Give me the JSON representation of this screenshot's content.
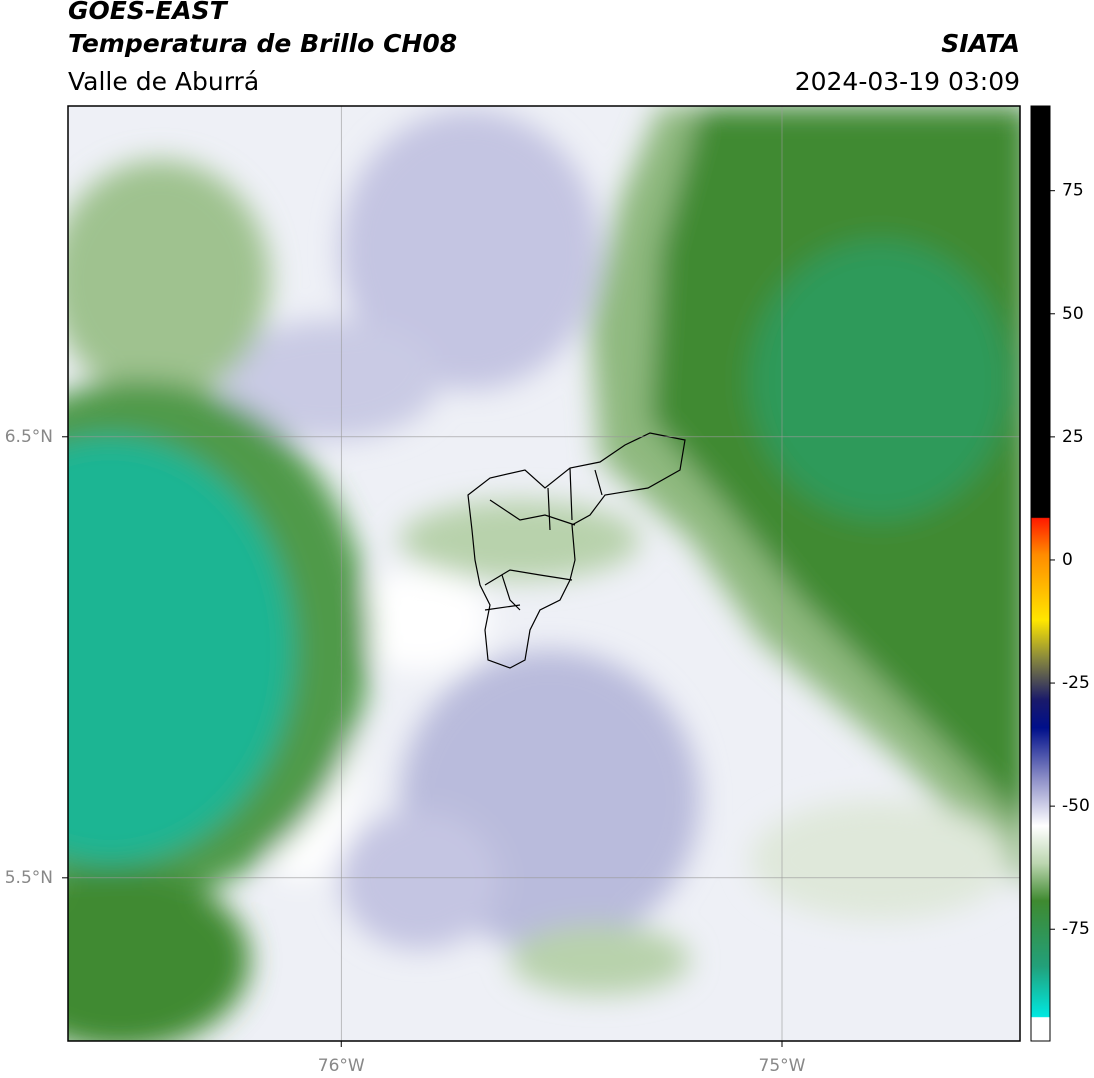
{
  "header": {
    "title": "GOES-EAST",
    "subtitle": "Temperatura de Brillo CH08",
    "region": "Valle de Aburrá",
    "source": "SIATA",
    "datetime": "2024-03-19 03:09"
  },
  "map": {
    "type": "map",
    "xlim": [
      -76.62,
      -74.46
    ],
    "ylim": [
      5.13,
      7.25
    ],
    "grid": true,
    "xticks": [
      {
        "value": -76,
        "label": "76°W"
      },
      {
        "value": -75,
        "label": "75°W"
      }
    ],
    "yticks": [
      {
        "value": 6.5,
        "label": "6.5°N"
      },
      {
        "value": 5.5,
        "label": "5.5°N"
      }
    ]
  },
  "colorbar": {
    "lim": [
      -97.7,
      92.2
    ],
    "ticks": [
      75,
      50,
      25,
      0,
      -25,
      -50,
      -75
    ]
  }
}
